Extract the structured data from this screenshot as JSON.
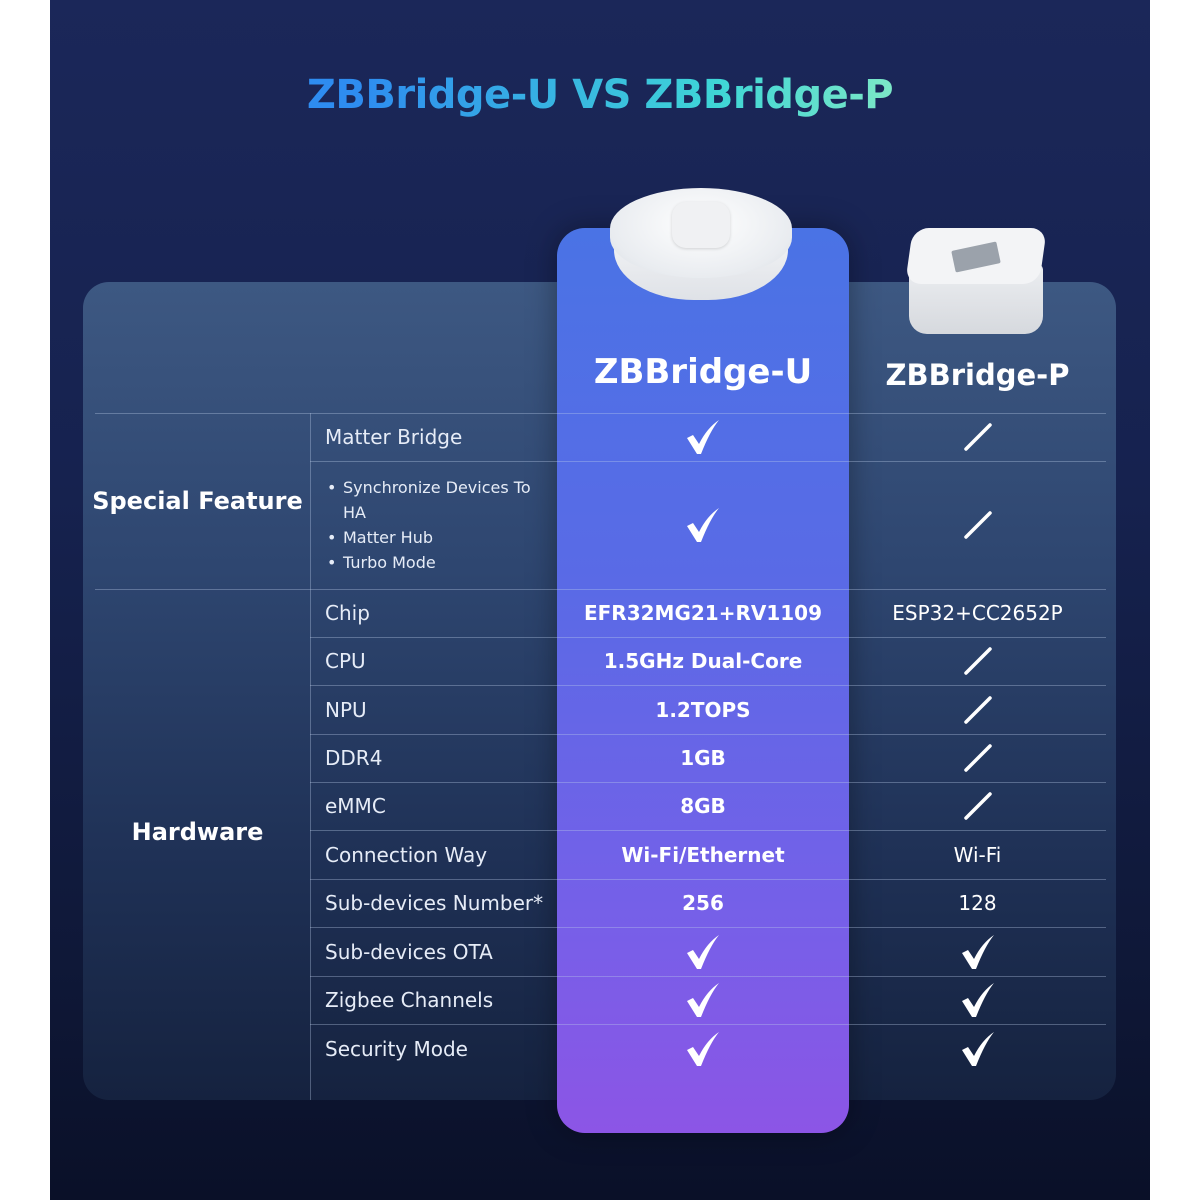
{
  "title": "ZBBridge-U VS ZBBridge-P",
  "products": {
    "u": "ZBBridge-U",
    "p": "ZBBridge-P"
  },
  "colors": {
    "highlight_top": "#4a73e5",
    "highlight_bottom": "#8c55e6",
    "background": "#16224f",
    "title_start": "#2e8cf0",
    "title_end": "#7fe8c6"
  },
  "categories": [
    {
      "label": "Special Feature"
    },
    {
      "label": "Hardware"
    }
  ],
  "rows": [
    {
      "feature": "Matter Bridge",
      "u": "check",
      "p": "dash"
    },
    {
      "feature_list": [
        "Synchronize Devices To HA",
        "Matter Hub",
        "Turbo Mode"
      ],
      "u": "check",
      "p": "dash"
    },
    {
      "feature": "Chip",
      "u": "EFR32MG21+RV1109",
      "p": "ESP32+CC2652P"
    },
    {
      "feature": "CPU",
      "u": "1.5GHz Dual-Core",
      "p": "dash"
    },
    {
      "feature": "NPU",
      "u": "1.2TOPS",
      "p": "dash"
    },
    {
      "feature": "DDR4",
      "u": "1GB",
      "p": "dash"
    },
    {
      "feature": "eMMC",
      "u": "8GB",
      "p": "dash"
    },
    {
      "feature": "Connection Way",
      "u": "Wi-Fi/Ethernet",
      "p": "Wi-Fi"
    },
    {
      "feature": "Sub-devices Number*",
      "u": "256",
      "p": "128"
    },
    {
      "feature": "Sub-devices OTA",
      "u": "check",
      "p": "check"
    },
    {
      "feature": "Zigbee Channels",
      "u": "check",
      "p": "check"
    },
    {
      "feature": "Security Mode",
      "u": "check",
      "p": "check"
    }
  ]
}
